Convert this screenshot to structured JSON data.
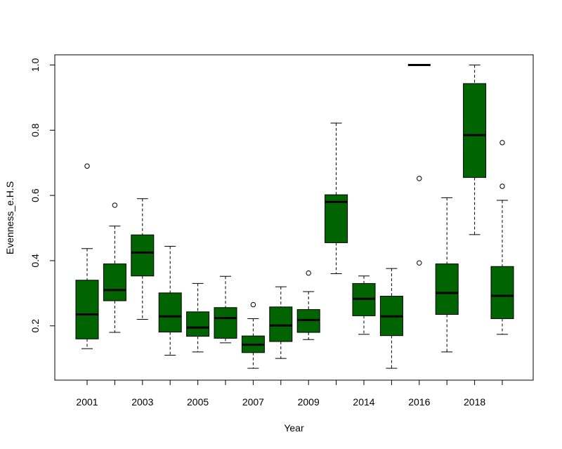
{
  "chart_data": {
    "type": "box",
    "xlabel": "Year",
    "ylabel": "Evenness_e.H.S",
    "ylim": [
      0.05,
      1.05
    ],
    "yticks": [
      0.2,
      0.4,
      0.6,
      0.8,
      1.0
    ],
    "ytick_labels": [
      "0.2",
      "0.4",
      "0.6",
      "0.8",
      "1.0"
    ],
    "box_color": "#006400",
    "categories": [
      "2001",
      "2002",
      "2003",
      "2004",
      "2005",
      "2006",
      "2007",
      "2008",
      "2009",
      "2010",
      "2014",
      "2015",
      "2016",
      "2017",
      "2018",
      "2019"
    ],
    "category_labels_shown": [
      "2001",
      "",
      "2003",
      "",
      "2005",
      "",
      "2007",
      "",
      "2009",
      "",
      "2014",
      "",
      "2016",
      "",
      "2018",
      ""
    ],
    "boxes": [
      {
        "min": 0.13,
        "q1": 0.16,
        "median": 0.235,
        "q3": 0.34,
        "max": 0.437,
        "outliers": [
          0.69
        ]
      },
      {
        "min": 0.18,
        "q1": 0.277,
        "median": 0.31,
        "q3": 0.39,
        "max": 0.506,
        "outliers": [
          0.57
        ]
      },
      {
        "min": 0.22,
        "q1": 0.353,
        "median": 0.425,
        "q3": 0.479,
        "max": 0.59,
        "outliers": []
      },
      {
        "min": 0.11,
        "q1": 0.181,
        "median": 0.229,
        "q3": 0.301,
        "max": 0.444,
        "outliers": []
      },
      {
        "min": 0.12,
        "q1": 0.168,
        "median": 0.195,
        "q3": 0.243,
        "max": 0.33,
        "outliers": []
      },
      {
        "min": 0.148,
        "q1": 0.162,
        "median": 0.224,
        "q3": 0.256,
        "max": 0.352,
        "outliers": []
      },
      {
        "min": 0.07,
        "q1": 0.118,
        "median": 0.142,
        "q3": 0.169,
        "max": 0.222,
        "outliers": [
          0.265
        ]
      },
      {
        "min": 0.1,
        "q1": 0.152,
        "median": 0.201,
        "q3": 0.258,
        "max": 0.32,
        "outliers": []
      },
      {
        "min": 0.158,
        "q1": 0.18,
        "median": 0.218,
        "q3": 0.25,
        "max": 0.305,
        "outliers": [
          0.362
        ]
      },
      {
        "min": 0.36,
        "q1": 0.455,
        "median": 0.58,
        "q3": 0.602,
        "max": 0.822,
        "outliers": []
      },
      {
        "min": 0.174,
        "q1": 0.231,
        "median": 0.283,
        "q3": 0.33,
        "max": 0.353,
        "outliers": []
      },
      {
        "min": 0.07,
        "q1": 0.17,
        "median": 0.229,
        "q3": 0.291,
        "max": 0.376,
        "outliers": []
      },
      {
        "min": 1.0,
        "q1": 1.0,
        "median": 1.0,
        "q3": 1.0,
        "max": 1.0,
        "outliers": [
          0.652,
          0.393
        ]
      },
      {
        "min": 0.12,
        "q1": 0.235,
        "median": 0.301,
        "q3": 0.39,
        "max": 0.593,
        "outliers": []
      },
      {
        "min": 0.48,
        "q1": 0.655,
        "median": 0.785,
        "q3": 0.943,
        "max": 1.0,
        "outliers": []
      },
      {
        "min": 0.174,
        "q1": 0.222,
        "median": 0.292,
        "q3": 0.382,
        "max": 0.585,
        "outliers": [
          0.762,
          0.628
        ]
      }
    ]
  }
}
